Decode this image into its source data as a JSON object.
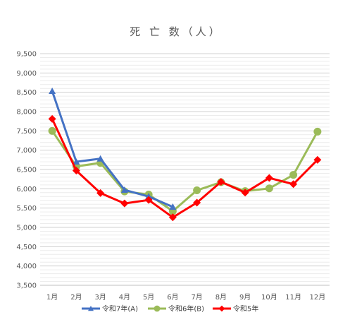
{
  "chart_data": {
    "type": "line",
    "title": "死 亡 数（人）",
    "categories": [
      "1月",
      "2月",
      "3月",
      "4月",
      "5月",
      "6月",
      "7月",
      "8月",
      "9月",
      "10月",
      "11月",
      "12月"
    ],
    "ylim": [
      3500,
      9500
    ],
    "yticks": [
      "3,500",
      "4,000",
      "4,500",
      "5,000",
      "5,500",
      "6,000",
      "6,500",
      "7,000",
      "7,500",
      "8,000",
      "8,500",
      "9,000",
      "9,500"
    ],
    "ytick_values": [
      3500,
      4000,
      4500,
      5000,
      5500,
      6000,
      6500,
      7000,
      7500,
      8000,
      8500,
      9000,
      9500
    ],
    "minor_grid_step": 100,
    "grid": true,
    "legend_position": "bottom",
    "series": [
      {
        "name": "令和7年(A)",
        "color": "#4472C4",
        "marker": "triangle",
        "values": [
          8530,
          6700,
          6780,
          5970,
          5800,
          5530,
          null,
          null,
          null,
          null,
          null,
          null
        ]
      },
      {
        "name": "令和6年(B)",
        "color": "#9BBB59",
        "marker": "circle",
        "values": [
          7500,
          6580,
          6670,
          5930,
          5850,
          5420,
          5960,
          6170,
          5940,
          6010,
          6360,
          7480
        ]
      },
      {
        "name": "令和5年",
        "color": "#FF0000",
        "marker": "diamond",
        "values": [
          7810,
          6470,
          5890,
          5620,
          5710,
          5260,
          5640,
          6180,
          5900,
          6280,
          6120,
          6750
        ]
      }
    ]
  }
}
